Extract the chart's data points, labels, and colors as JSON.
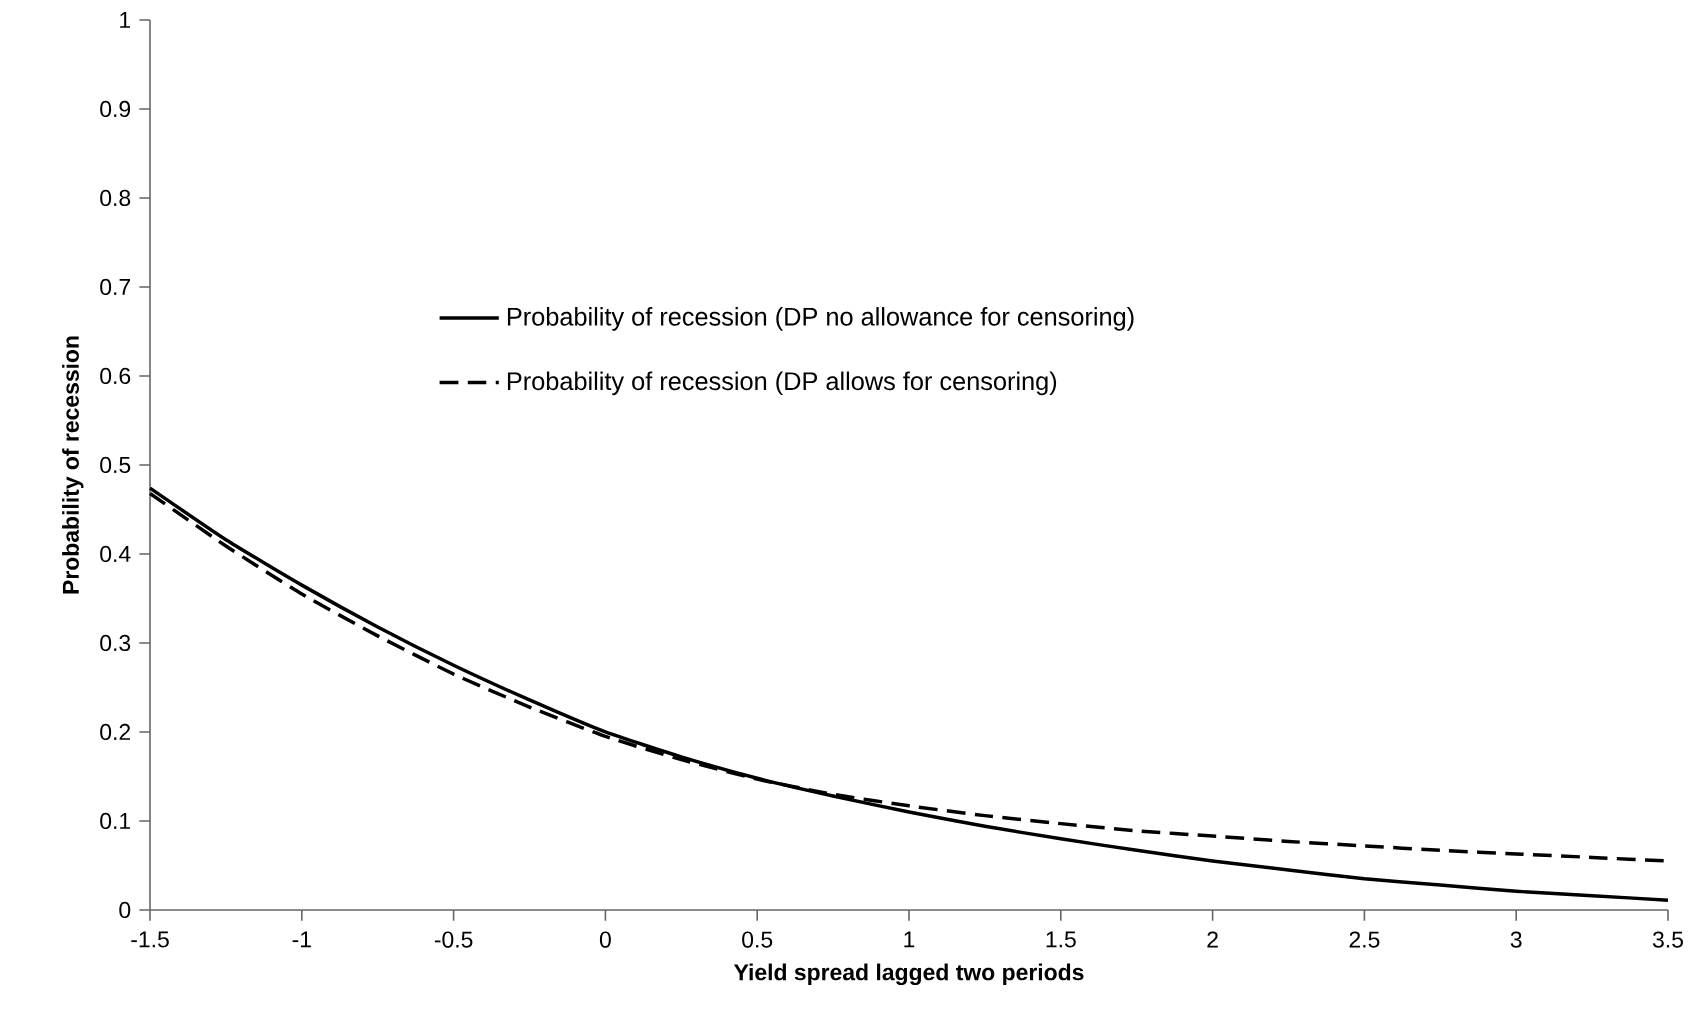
{
  "chart_data": {
    "type": "line",
    "xlabel": "Yield spread lagged two periods",
    "ylabel": "Probability of recession",
    "x": [
      -1.5,
      -1.25,
      -1,
      -0.75,
      -0.5,
      -0.25,
      0,
      0.25,
      0.5,
      0.75,
      1,
      1.25,
      1.5,
      1.75,
      2,
      2.25,
      2.5,
      2.75,
      3,
      3.25,
      3.5
    ],
    "series": [
      {
        "name": "Probability of recession (DP no allowance for censoring)",
        "color": "#000000",
        "line_style": "solid",
        "values": [
          0.474,
          0.416,
          0.365,
          0.318,
          0.275,
          0.236,
          0.2,
          0.172,
          0.148,
          0.128,
          0.11,
          0.094,
          0.08,
          0.067,
          0.055,
          0.045,
          0.035,
          0.028,
          0.021,
          0.016,
          0.011
        ]
      },
      {
        "name": "Probability of recession (DP allows for censoring)",
        "color": "#000000",
        "line_style": "dashed",
        "values": [
          0.468,
          0.409,
          0.355,
          0.308,
          0.265,
          0.228,
          0.195,
          0.169,
          0.147,
          0.13,
          0.117,
          0.106,
          0.097,
          0.089,
          0.083,
          0.077,
          0.072,
          0.067,
          0.063,
          0.059,
          0.055
        ]
      }
    ],
    "xlim": [
      -1.5,
      3.5
    ],
    "ylim": [
      0,
      1
    ],
    "xticks": [
      -1.5,
      -1,
      -0.5,
      0,
      0.5,
      1,
      1.5,
      2,
      2.5,
      3,
      3.5
    ],
    "yticks": [
      0,
      0.1,
      0.2,
      0.3,
      0.4,
      0.5,
      0.6,
      0.7,
      0.8,
      0.9,
      1
    ],
    "legend": "left",
    "grid": false,
    "marker": "none"
  }
}
